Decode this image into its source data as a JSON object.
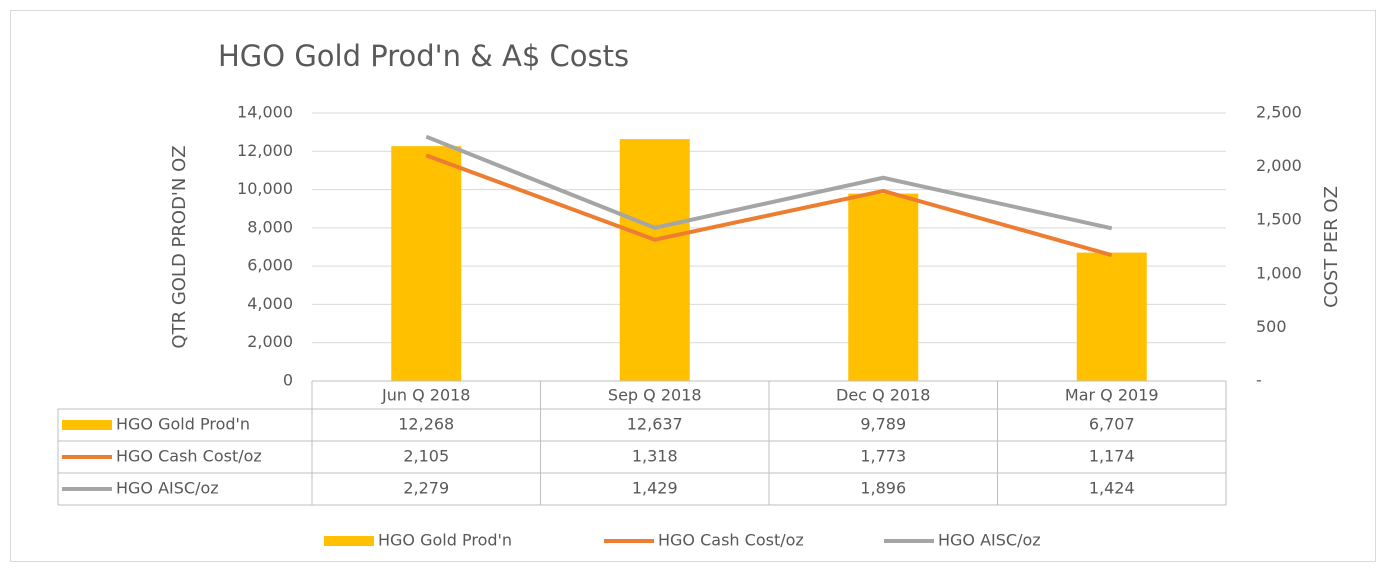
{
  "chart_data": {
    "type": "bar-line-table",
    "title": "HGO Gold Prod'n & A$ Costs",
    "ylabel": "QTR GOLD PROD'N OZ",
    "y2label": "COST PER OZ",
    "categories": [
      "Jun Q 2018",
      "Sep Q 2018",
      "Dec Q 2018",
      "Mar Q 2019"
    ],
    "series": [
      {
        "name": "HGO Gold Prod'n",
        "type": "bar",
        "color": "#FFC000",
        "values": [
          12268,
          12637,
          9789,
          6707
        ],
        "value_labels": [
          "12,268",
          "12,637",
          "9,789",
          "6,707"
        ]
      },
      {
        "name": "HGO Cash Cost/oz",
        "type": "line",
        "axis": "y2",
        "color": "#ED7D31",
        "values": [
          2105,
          1318,
          1773,
          1174
        ],
        "value_labels": [
          "2,105",
          "1,318",
          "1,773",
          "1,174"
        ]
      },
      {
        "name": "HGO AISC/oz",
        "type": "line",
        "axis": "y2",
        "color": "#A5A5A5",
        "values": [
          2279,
          1429,
          1896,
          1424
        ],
        "value_labels": [
          "2,279",
          "1,429",
          "1,896",
          "1,424"
        ]
      }
    ],
    "ylim": [
      0,
      14000
    ],
    "yticks": [
      0,
      {
        "value": 2000,
        "label": "2,000"
      },
      {
        "value": 4000,
        "label": "4,000"
      },
      {
        "value": 6000,
        "label": "6,000"
      },
      {
        "value": 8000,
        "label": "8,000"
      },
      {
        "value": 10000,
        "label": "10,000"
      },
      {
        "value": 12000,
        "label": "12,000"
      },
      {
        "value": 14000,
        "label": "14,000"
      }
    ],
    "y2lim": [
      0,
      2500
    ],
    "y2ticks": [
      {
        "value": 0,
        "label": "-"
      },
      500,
      {
        "value": 1000,
        "label": "1,000"
      },
      {
        "value": 1500,
        "label": "1,500"
      },
      {
        "value": 2000,
        "label": "2,000"
      },
      {
        "value": 2500,
        "label": "2,500"
      }
    ],
    "grid": true,
    "legend": "bottom"
  }
}
